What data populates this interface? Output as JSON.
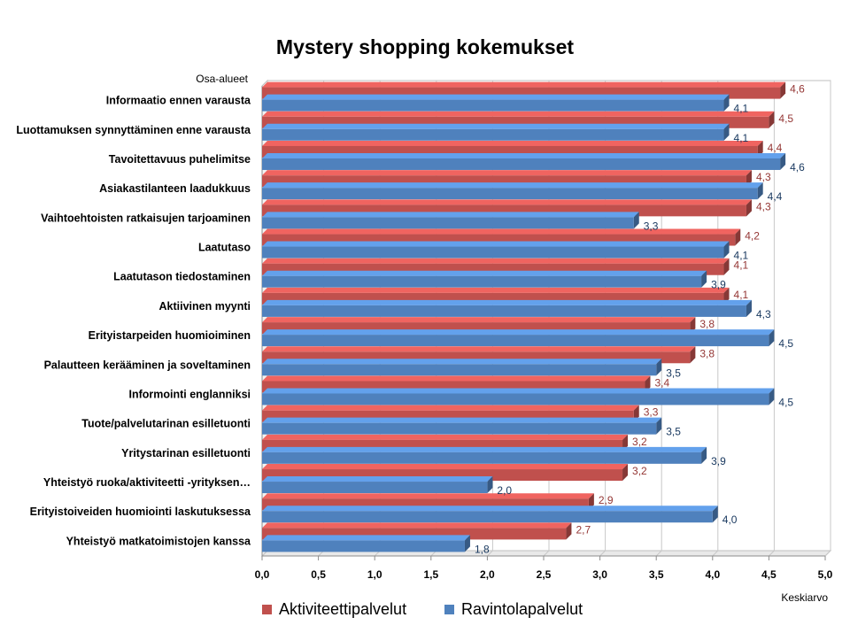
{
  "chart_data": {
    "type": "bar",
    "orientation": "horizontal",
    "title": "Mystery shopping kokemukset",
    "ylabel": "Osa-alueet",
    "xlabel": "Keskiarvo",
    "xlim": [
      0,
      5
    ],
    "xticks": [
      "0,0",
      "0,5",
      "1,0",
      "1,5",
      "2,0",
      "2,5",
      "3,0",
      "3,5",
      "4,0",
      "4,5",
      "5,0"
    ],
    "grid": true,
    "legend_position": "bottom",
    "categories": [
      "Informaatio ennen varausta",
      "Luottamuksen synnyttäminen enne varausta",
      "Tavoitettavuus puhelimitse",
      "Asiakastilanteen laadukkuus",
      "Vaihtoehtoisten ratkaisujen tarjoaminen",
      "Laatutaso",
      "Laatutason tiedostaminen",
      "Aktiivinen myynti",
      "Erityistarpeiden huomioiminen",
      "Palautteen kerääminen ja soveltaminen",
      "Informointi englanniksi",
      "Tuote/palvelutarinan esilletuonti",
      "Yritystarinan esilletuonti",
      "Yhteistyö ruoka/aktiviteetti -yrityksen…",
      "Erityistoiveiden huomiointi laskutuksessa",
      "Yhteistyö matkatoimistojen kanssa"
    ],
    "series": [
      {
        "name": "Aktiviteettipalvelut",
        "color": "#C0504D",
        "values": [
          4.6,
          4.5,
          4.4,
          4.3,
          4.3,
          4.2,
          4.1,
          4.1,
          3.8,
          3.8,
          3.4,
          3.3,
          3.2,
          3.2,
          2.9,
          2.7
        ],
        "labels": [
          "4,6",
          "4,5",
          "4,4",
          "4,3",
          "4,3",
          "4,2",
          "4,1",
          "4,1",
          "3,8",
          "3,8",
          "3,4",
          "3,3",
          "3,2",
          "3,2",
          "2,9",
          "2,7"
        ]
      },
      {
        "name": "Ravintolapalvelut",
        "color": "#4F81BD",
        "values": [
          4.1,
          4.1,
          4.6,
          4.4,
          3.3,
          4.1,
          3.9,
          4.3,
          4.5,
          3.5,
          4.5,
          3.5,
          3.9,
          2.0,
          4.0,
          1.8
        ],
        "labels": [
          "4,1",
          "4,1",
          "4,6",
          "4,4",
          "3,3",
          "4,1",
          "3,9",
          "4,3",
          "4,5",
          "3,5",
          "4,5",
          "3,5",
          "3,9",
          "2,0",
          "4,0",
          "1,8"
        ]
      }
    ]
  }
}
